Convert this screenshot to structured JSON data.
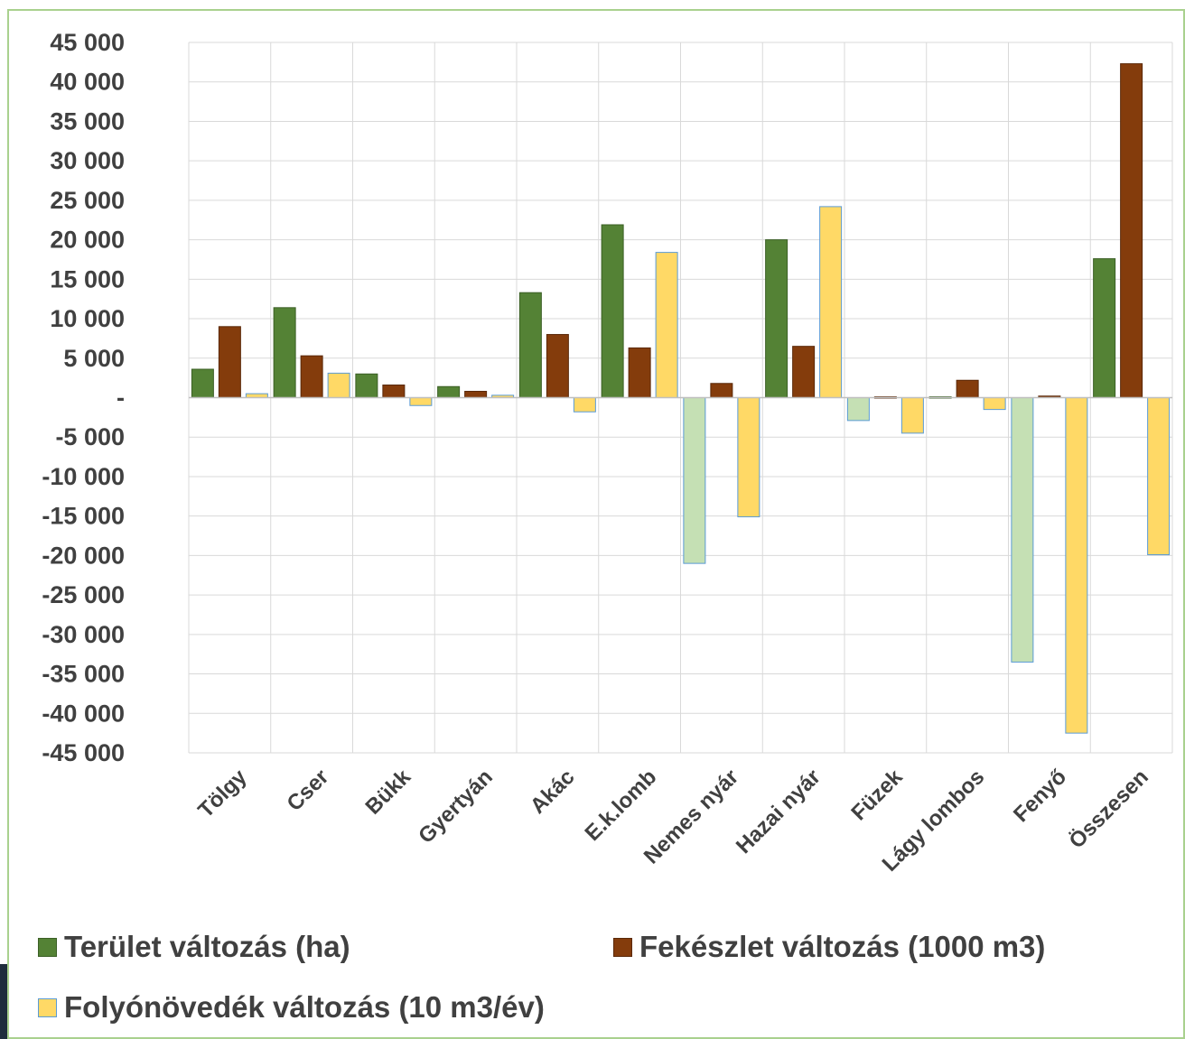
{
  "chart_data": {
    "type": "bar",
    "categories": [
      "Tölgy",
      "Cser",
      "Bükk",
      "Gyertyán",
      "Akác",
      "E.k.lomb",
      "Nemes nyár",
      "Hazai nyár",
      "Füzek",
      "Lágy lombos",
      "Fenyő",
      "Összesen"
    ],
    "series": [
      {
        "name": "Terület változás (ha)",
        "color": "#548235",
        "negative_color": "#c5e0b4",
        "values": [
          3600,
          11400,
          3000,
          1400,
          13300,
          21900,
          -21000,
          20000,
          -2900,
          100,
          -33500,
          17600
        ]
      },
      {
        "name": "Fekészlet változás (1000 m3)",
        "color": "#843c0c",
        "negative_color": "#843c0c",
        "values": [
          9000,
          5300,
          1600,
          800,
          8000,
          6300,
          1800,
          6500,
          100,
          2200,
          200,
          42300
        ]
      },
      {
        "name": "Folyónövedék változás (10 m3/év)",
        "color": "#ffd966",
        "negative_color": "#ffd966",
        "values": [
          500,
          3100,
          -1000,
          300,
          -1800,
          18400,
          -15100,
          24200,
          -4500,
          -1500,
          -42500,
          -19900
        ]
      }
    ],
    "ylim": [
      -45000,
      45000
    ],
    "yticks": [
      45000,
      40000,
      35000,
      30000,
      25000,
      20000,
      15000,
      10000,
      5000,
      0,
      -5000,
      -10000,
      -15000,
      -20000,
      -25000,
      -30000,
      -35000,
      -40000,
      -45000
    ],
    "ytick_labels": [
      "45 000",
      "40 000",
      "35 000",
      "30 000",
      "25 000",
      "20 000",
      "15 000",
      "10 000",
      "5 000",
      "-",
      "-5 000",
      "-10 000",
      "-15 000",
      "-20 000",
      "-25 000",
      "-30 000",
      "-35 000",
      "-40 000",
      "-45 000"
    ],
    "grid": true,
    "legend_position": "bottom"
  }
}
